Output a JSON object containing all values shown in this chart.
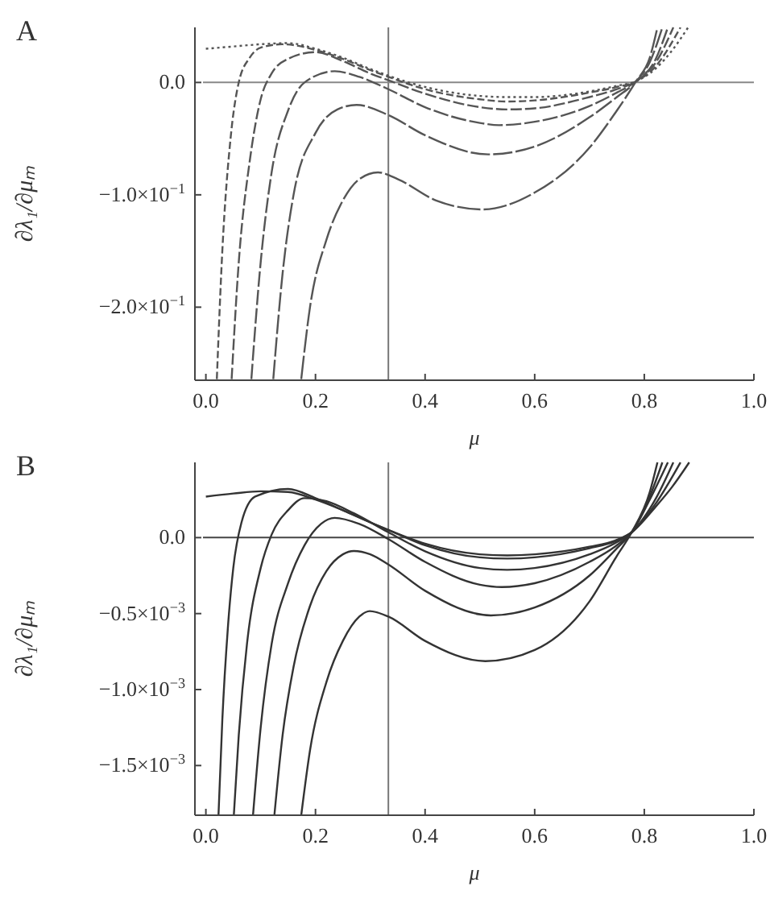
{
  "chart_data": [
    {
      "type": "line",
      "title": "A",
      "xlabel": "μ",
      "ylabel": "∂λ₁/∂μₘ",
      "xlim": [
        -0.02,
        1.0
      ],
      "ylim": [
        -0.265,
        0.049
      ],
      "xticks": [
        {
          "value": 0,
          "label": "0.0"
        },
        {
          "value": 0.2,
          "label": "0.2"
        },
        {
          "value": 0.4,
          "label": "0.4"
        },
        {
          "value": 0.6,
          "label": "0.6"
        },
        {
          "value": 0.8,
          "label": "0.8"
        },
        {
          "value": 1.0,
          "label": "1.0"
        }
      ],
      "yticks": [
        {
          "value": 0,
          "label": "0.0"
        },
        {
          "value": -0.1,
          "label": "−1.0×10$^{−1}$"
        },
        {
          "value": -0.2,
          "label": "−2.0×10$^{−1}$"
        }
      ],
      "ref_lines": [
        {
          "axis": "x",
          "value": 0.333,
          "color": "#777777"
        },
        {
          "axis": "y",
          "value": 0,
          "color": "#888888"
        }
      ],
      "series": [
        {
          "color": "#555555",
          "line_style": "dotted",
          "x": [
            0,
            0.05,
            0.1,
            0.15,
            0.2,
            0.25,
            0.3,
            0.333,
            0.4,
            0.5,
            0.55,
            0.6,
            0.7,
            0.75,
            0.785,
            0.82,
            0.85,
            0.88
          ],
          "values": [
            0.03,
            0.032,
            0.034,
            0.035,
            0.03,
            0.022,
            0.012,
            0.006,
            -0.004,
            -0.012,
            -0.013,
            -0.013,
            -0.008,
            -0.003,
            0.001,
            0.012,
            0.028,
            0.049
          ]
        },
        {
          "color": "#555555",
          "line_style": "dashed",
          "x": [
            0.02,
            0.03,
            0.045,
            0.06,
            0.08,
            0.1,
            0.14,
            0.2,
            0.25,
            0.3,
            0.333,
            0.4,
            0.5,
            0.55,
            0.6,
            0.7,
            0.75,
            0.785,
            0.82,
            0.866
          ],
          "values": [
            -0.264,
            -0.15,
            -0.05,
            0.0,
            0.022,
            0.031,
            0.034,
            0.029,
            0.021,
            0.011,
            0.005,
            -0.006,
            -0.015,
            -0.017,
            -0.016,
            -0.009,
            -0.004,
            0.001,
            0.014,
            0.049
          ]
        },
        {
          "color": "#555555",
          "line_style": "dashed",
          "x": [
            0.047,
            0.06,
            0.08,
            0.1,
            0.12,
            0.15,
            0.2,
            0.25,
            0.3,
            0.333,
            0.4,
            0.5,
            0.55,
            0.6,
            0.7,
            0.75,
            0.785,
            0.82,
            0.853
          ],
          "values": [
            -0.264,
            -0.16,
            -0.07,
            -0.015,
            0.008,
            0.021,
            0.027,
            0.019,
            0.008,
            0.002,
            -0.01,
            -0.022,
            -0.024,
            -0.023,
            -0.013,
            -0.006,
            0.001,
            0.017,
            0.049
          ]
        },
        {
          "color": "#555555",
          "line_style": "dashed",
          "x": [
            0.083,
            0.1,
            0.12,
            0.15,
            0.18,
            0.235,
            0.28,
            0.333,
            0.4,
            0.5,
            0.535,
            0.6,
            0.7,
            0.75,
            0.785,
            0.82,
            0.843
          ],
          "values": [
            -0.264,
            -0.16,
            -0.08,
            -0.025,
            0.0,
            0.01,
            0.005,
            -0.006,
            -0.022,
            -0.036,
            -0.038,
            -0.035,
            -0.021,
            -0.009,
            0.001,
            0.02,
            0.049
          ]
        },
        {
          "color": "#555555",
          "line_style": "dashed",
          "x": [
            0.123,
            0.14,
            0.16,
            0.2,
            0.24,
            0.275,
            0.333,
            0.4,
            0.515,
            0.6,
            0.7,
            0.75,
            0.785,
            0.81,
            0.833
          ],
          "values": [
            -0.264,
            -0.17,
            -0.1,
            -0.045,
            -0.024,
            -0.02,
            -0.029,
            -0.047,
            -0.064,
            -0.057,
            -0.031,
            -0.013,
            0.001,
            0.018,
            0.049
          ]
        },
        {
          "color": "#555555",
          "line_style": "dashed",
          "x": [
            0.174,
            0.19,
            0.22,
            0.25,
            0.28,
            0.314,
            0.35,
            0.42,
            0.505,
            0.6,
            0.7,
            0.75,
            0.785,
            0.81,
            0.824
          ],
          "values": [
            -0.264,
            -0.2,
            -0.14,
            -0.105,
            -0.086,
            -0.08,
            -0.086,
            -0.105,
            -0.113,
            -0.098,
            -0.058,
            -0.025,
            0.001,
            0.022,
            0.049
          ]
        }
      ]
    },
    {
      "type": "line",
      "title": "B",
      "xlabel": "μ",
      "ylabel": "∂λ₁/∂μₘ",
      "xlim": [
        -0.02,
        1.0
      ],
      "ylim": [
        -0.001827,
        0.000495
      ],
      "xticks": [
        {
          "value": 0,
          "label": "0.0"
        },
        {
          "value": 0.2,
          "label": "0.2"
        },
        {
          "value": 0.4,
          "label": "0.4"
        },
        {
          "value": 0.6,
          "label": "0.6"
        },
        {
          "value": 0.8,
          "label": "0.8"
        },
        {
          "value": 1.0,
          "label": "1.0"
        }
      ],
      "yticks": [
        {
          "value": 0,
          "label": "0.0"
        },
        {
          "value": -0.0005,
          "label": "−0.5×10$^{−3}$"
        },
        {
          "value": -0.001,
          "label": "−1.0×10$^{−3}$"
        },
        {
          "value": -0.0015,
          "label": "−1.5×10$^{−3}$"
        }
      ],
      "ref_lines": [
        {
          "axis": "x",
          "value": 0.333,
          "color": "#777777"
        },
        {
          "axis": "y",
          "value": 0,
          "color": "#444444"
        }
      ],
      "series": [
        {
          "color": "#333333",
          "line_style": "solid",
          "x": [
            0,
            0.05,
            0.1,
            0.15,
            0.2,
            0.25,
            0.3,
            0.333,
            0.4,
            0.5,
            0.55,
            0.6,
            0.7,
            0.75,
            0.777,
            0.82,
            0.85,
            0.882
          ],
          "values": [
            0.00027,
            0.00029,
            0.000305,
            0.0003,
            0.00025,
            0.00018,
            0.0001,
            5e-05,
            -4e-05,
            -0.00011,
            -0.000117,
            -0.00011,
            -6e-05,
            -1.5e-05,
            3.5e-05,
            0.0002,
            0.00033,
            0.000495
          ]
        },
        {
          "color": "#333333",
          "line_style": "solid",
          "x": [
            0.023,
            0.03,
            0.04,
            0.05,
            0.065,
            0.09,
            0.15,
            0.2,
            0.25,
            0.3,
            0.333,
            0.4,
            0.5,
            0.55,
            0.6,
            0.7,
            0.75,
            0.777,
            0.82,
            0.866
          ],
          "values": [
            -0.001827,
            -0.0012,
            -0.0006,
            -0.0002,
            0.0001,
            0.00027,
            0.00032,
            0.00026,
            0.00018,
            0.0001,
            5e-05,
            -5e-05,
            -0.00013,
            -0.000138,
            -0.00013,
            -7e-05,
            -2e-05,
            3.5e-05,
            0.00022,
            0.000495
          ]
        },
        {
          "color": "#333333",
          "line_style": "solid",
          "x": [
            0.051,
            0.06,
            0.075,
            0.1,
            0.12,
            0.15,
            0.18,
            0.22,
            0.27,
            0.333,
            0.4,
            0.5,
            0.55,
            0.6,
            0.7,
            0.75,
            0.777,
            0.82,
            0.853
          ],
          "values": [
            -0.001827,
            -0.0013,
            -0.0007,
            -0.0002,
            2e-05,
            0.00018,
            0.00026,
            0.00024,
            0.00016,
            3.5e-05,
            -9e-05,
            -0.0002,
            -0.000212,
            -0.0002,
            -0.00011,
            -3e-05,
            3.5e-05,
            0.00025,
            0.000495
          ]
        },
        {
          "color": "#333333",
          "line_style": "solid",
          "x": [
            0.086,
            0.1,
            0.12,
            0.15,
            0.18,
            0.21,
            0.235,
            0.28,
            0.333,
            0.4,
            0.5,
            0.54,
            0.6,
            0.7,
            0.75,
            0.777,
            0.81,
            0.843
          ],
          "values": [
            -0.001827,
            -0.00125,
            -0.0007,
            -0.0003,
            -5e-05,
            9e-05,
            0.00013,
            9e-05,
            -1e-05,
            -0.00016,
            -0.00031,
            -0.000325,
            -0.0003,
            -0.00016,
            -5e-05,
            3.5e-05,
            0.00025,
            0.000495
          ]
        },
        {
          "color": "#333333",
          "line_style": "solid",
          "x": [
            0.125,
            0.14,
            0.16,
            0.19,
            0.22,
            0.25,
            0.27,
            0.3,
            0.333,
            0.4,
            0.52,
            0.6,
            0.7,
            0.75,
            0.777,
            0.81,
            0.833
          ],
          "values": [
            -0.001827,
            -0.0013,
            -0.00085,
            -0.00045,
            -0.00022,
            -0.00011,
            -8.8e-05,
            -0.00011,
            -0.000177,
            -0.00035,
            -0.000512,
            -0.00046,
            -0.00025,
            -7e-05,
            3.5e-05,
            0.00027,
            0.000495
          ]
        },
        {
          "color": "#333333",
          "line_style": "solid",
          "x": [
            0.174,
            0.19,
            0.22,
            0.25,
            0.28,
            0.299,
            0.333,
            0.4,
            0.51,
            0.6,
            0.7,
            0.75,
            0.777,
            0.81,
            0.824
          ],
          "values": [
            -0.001827,
            -0.0014,
            -0.00095,
            -0.00068,
            -0.00052,
            -0.000484,
            -0.00052,
            -0.00068,
            -0.000813,
            -0.00074,
            -0.00042,
            -0.00012,
            3.5e-05,
            0.0003,
            0.000495
          ]
        }
      ]
    }
  ]
}
